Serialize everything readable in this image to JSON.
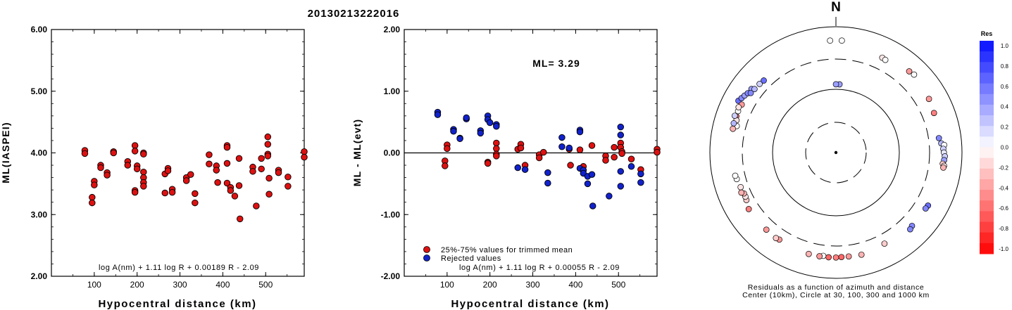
{
  "title": "20130213222016",
  "chart_data": [
    {
      "type": "scatter",
      "panel": "ML vs distance",
      "xlabel": "Hypocentral distance (km)",
      "ylabel": "ML(IASPEI)",
      "xlim": [
        0,
        590
      ],
      "ylim": [
        2.0,
        6.0
      ],
      "xticks": [
        "100",
        "200",
        "300",
        "400",
        "500"
      ],
      "yticks": [
        "2.00",
        "3.00",
        "4.00",
        "5.00",
        "6.00"
      ],
      "formula": "log A(nm) + 1.11 log R + 0.00189 R - 2.09",
      "marker_color": "#dd1111",
      "points": [
        [
          78,
          4.04
        ],
        [
          78,
          3.99
        ],
        [
          95,
          3.28
        ],
        [
          95,
          3.19
        ],
        [
          100,
          3.54
        ],
        [
          100,
          3.48
        ],
        [
          115,
          3.8
        ],
        [
          115,
          3.76
        ],
        [
          130,
          3.68
        ],
        [
          130,
          3.64
        ],
        [
          145,
          4.02
        ],
        [
          145,
          4.0
        ],
        [
          178,
          3.86
        ],
        [
          178,
          3.8
        ],
        [
          195,
          4.12
        ],
        [
          195,
          4.03
        ],
        [
          195,
          3.39
        ],
        [
          195,
          3.36
        ],
        [
          200,
          3.79
        ],
        [
          200,
          3.74
        ],
        [
          215,
          4.0
        ],
        [
          215,
          3.98
        ],
        [
          215,
          3.69
        ],
        [
          215,
          3.6
        ],
        [
          215,
          3.52
        ],
        [
          215,
          3.46
        ],
        [
          265,
          3.66
        ],
        [
          265,
          3.35
        ],
        [
          272,
          3.75
        ],
        [
          272,
          3.71
        ],
        [
          282,
          3.41
        ],
        [
          282,
          3.36
        ],
        [
          315,
          3.6
        ],
        [
          315,
          3.55
        ],
        [
          325,
          3.65
        ],
        [
          335,
          3.34
        ],
        [
          335,
          3.19
        ],
        [
          368,
          3.97
        ],
        [
          368,
          3.82
        ],
        [
          385,
          3.79
        ],
        [
          385,
          3.72
        ],
        [
          388,
          3.52
        ],
        [
          410,
          4.12
        ],
        [
          410,
          4.09
        ],
        [
          410,
          3.83
        ],
        [
          410,
          3.51
        ],
        [
          418,
          3.44
        ],
        [
          418,
          3.39
        ],
        [
          428,
          3.3
        ],
        [
          438,
          3.91
        ],
        [
          438,
          3.47
        ],
        [
          440,
          2.93
        ],
        [
          470,
          3.77
        ],
        [
          470,
          3.7
        ],
        [
          478,
          3.14
        ],
        [
          490,
          3.91
        ],
        [
          490,
          3.74
        ],
        [
          505,
          4.26
        ],
        [
          505,
          4.14
        ],
        [
          505,
          3.98
        ],
        [
          505,
          3.95
        ],
        [
          508,
          3.59
        ],
        [
          508,
          3.33
        ],
        [
          530,
          3.72
        ],
        [
          530,
          3.68
        ],
        [
          552,
          3.61
        ],
        [
          552,
          3.46
        ],
        [
          590,
          4.02
        ],
        [
          590,
          3.93
        ]
      ]
    },
    {
      "type": "scatter",
      "panel": "Residuals vs distance",
      "xlabel": "Hypocentral distance (km)",
      "ylabel": "ML - ML(evt)",
      "xlim": [
        0,
        590
      ],
      "ylim": [
        -2.0,
        2.0
      ],
      "xticks": [
        "100",
        "200",
        "300",
        "400",
        "500"
      ],
      "yticks": [
        "-2.00",
        "-1.00",
        "0.00",
        "1.00",
        "2.00"
      ],
      "annotation": "ML= 3.29",
      "formula": "log A(nm) + 1.11 log R + 0.00055 R - 2.09",
      "legend": [
        {
          "label": "25%-75% values for trimmed mean",
          "color": "#dd1111"
        },
        {
          "label": "Rejected values",
          "color": "#1122cc"
        }
      ],
      "series": [
        {
          "name": "25%-75% values for trimmed mean",
          "color": "#dd1111",
          "points": [
            [
              95,
              -0.13
            ],
            [
              95,
              -0.21
            ],
            [
              100,
              0.13
            ],
            [
              100,
              0.07
            ],
            [
              195,
              -0.15
            ],
            [
              195,
              -0.17
            ],
            [
              215,
              0.16
            ],
            [
              215,
              0.07
            ],
            [
              215,
              -0.02
            ],
            [
              215,
              -0.05
            ],
            [
              265,
              0.06
            ],
            [
              272,
              0.14
            ],
            [
              272,
              0.08
            ],
            [
              282,
              -0.2
            ],
            [
              315,
              -0.03
            ],
            [
              315,
              -0.08
            ],
            [
              325,
              0.01
            ],
            [
              385,
              0.06
            ],
            [
              388,
              -0.2
            ],
            [
              410,
              0.05
            ],
            [
              418,
              -0.22
            ],
            [
              438,
              0.12
            ],
            [
              470,
              -0.05
            ],
            [
              470,
              -0.12
            ],
            [
              490,
              0.09
            ],
            [
              490,
              -0.07
            ],
            [
              505,
              0.16
            ],
            [
              505,
              0.09
            ],
            [
              508,
              0.02
            ],
            [
              508,
              -0.01
            ],
            [
              530,
              -0.1
            ],
            [
              552,
              -0.27
            ],
            [
              590,
              0.06
            ],
            [
              590,
              0.01
            ]
          ]
        },
        {
          "name": "Rejected values",
          "color": "#1122cc",
          "points": [
            [
              78,
              0.66
            ],
            [
              78,
              0.62
            ],
            [
              115,
              0.38
            ],
            [
              115,
              0.35
            ],
            [
              130,
              0.24
            ],
            [
              130,
              0.23
            ],
            [
              145,
              0.55
            ],
            [
              145,
              0.57
            ],
            [
              178,
              0.36
            ],
            [
              178,
              0.32
            ],
            [
              195,
              0.6
            ],
            [
              195,
              0.54
            ],
            [
              200,
              0.49
            ],
            [
              215,
              0.46
            ],
            [
              215,
              0.43
            ],
            [
              265,
              -0.24
            ],
            [
              282,
              -0.27
            ],
            [
              335,
              -0.32
            ],
            [
              335,
              -0.49
            ],
            [
              368,
              0.25
            ],
            [
              368,
              0.1
            ],
            [
              385,
              0.08
            ],
            [
              410,
              0.37
            ],
            [
              410,
              0.34
            ],
            [
              410,
              -0.25
            ],
            [
              418,
              -0.28
            ],
            [
              418,
              -0.33
            ],
            [
              428,
              -0.38
            ],
            [
              428,
              -0.5
            ],
            [
              438,
              -0.35
            ],
            [
              440,
              -0.86
            ],
            [
              478,
              -0.7
            ],
            [
              505,
              0.42
            ],
            [
              505,
              0.29
            ],
            [
              505,
              -0.3
            ],
            [
              505,
              -0.54
            ],
            [
              530,
              -0.22
            ],
            [
              552,
              -0.34
            ],
            [
              552,
              -0.48
            ]
          ]
        }
      ]
    },
    {
      "type": "scatter",
      "panel": "Azimuthal residual plot",
      "north_label": "N",
      "caption": [
        "Residuals as a function of azimuth and distance",
        "Center (10km), Circle at 30, 100, 300 and 1000 km"
      ],
      "colorbar": {
        "title": "Res",
        "ticks": [
          "1.0",
          "0.8",
          "0.6",
          "0.4",
          "0.2",
          "0.0",
          "-0.2",
          "-0.4",
          "-0.6",
          "-0.8",
          "-1.0"
        ]
      },
      "stations": [
        [
          -3,
          600,
          0.0
        ],
        [
          3,
          600,
          0.0
        ],
        [
          -62,
          560,
          0.6
        ],
        [
          -60,
          530,
          0.5
        ],
        [
          -58,
          505,
          0.4
        ],
        [
          -56,
          480,
          0.5
        ],
        [
          -53,
          470,
          0.4
        ],
        [
          -55,
          440,
          0.5
        ],
        [
          -52,
          430,
          0.3
        ],
        [
          -48,
          420,
          0.2
        ],
        [
          -45,
          410,
          0.6
        ],
        [
          -63,
          470,
          -0.4
        ],
        [
          -67,
          480,
          0.0
        ],
        [
          -65,
          500,
          -0.1
        ],
        [
          -70,
          475,
          -0.6
        ],
        [
          -72,
          450,
          -0.1
        ],
        [
          -75,
          420,
          0.0
        ],
        [
          -74,
          480,
          0.3
        ],
        [
          -70,
          505,
          0.2
        ],
        [
          -77,
          470,
          -0.3
        ],
        [
          3,
          120,
          0.4
        ],
        [
          0,
          120,
          0.4
        ],
        [
          26,
          470,
          -0.1
        ],
        [
          28,
          460,
          0.0
        ],
        [
          42,
          540,
          -0.4
        ],
        [
          45,
          560,
          0.0
        ],
        [
          60,
          500,
          -0.4
        ],
        [
          68,
          470,
          -0.5
        ],
        [
          82,
          440,
          0.5
        ],
        [
          85,
          470,
          0.3
        ],
        [
          86,
          520,
          0.0
        ],
        [
          88,
          500,
          0.2
        ],
        [
          90,
          510,
          0.1
        ],
        [
          92,
          530,
          0.2
        ],
        [
          94,
          520,
          0.4
        ],
        [
          96,
          500,
          -0.2
        ],
        [
          97,
          530,
          -0.1
        ],
        [
          98,
          520,
          -0.3
        ],
        [
          120,
          480,
          0.6
        ],
        [
          122,
          470,
          0.5
        ],
        [
          134,
          470,
          0.5
        ],
        [
          136,
          490,
          0.5
        ],
        [
          152,
          430,
          -0.2
        ],
        [
          166,
          465,
          -0.3
        ],
        [
          173,
          455,
          -0.4
        ],
        [
          177,
          455,
          -0.6
        ],
        [
          180,
          460,
          -0.5
        ],
        [
          184,
          460,
          -0.6
        ],
        [
          187,
          445,
          0.0
        ],
        [
          189,
          460,
          -0.4
        ],
        [
          195,
          460,
          -0.3
        ],
        [
          213,
          440,
          -0.4
        ],
        [
          215,
          450,
          -0.2
        ],
        [
          222,
          440,
          -0.4
        ],
        [
          237,
          440,
          -0.5
        ],
        [
          242,
          400,
          -0.2
        ],
        [
          244,
          390,
          -0.1
        ],
        [
          246,
          390,
          -0.3
        ],
        [
          250,
          400,
          -0.1
        ],
        [
          247,
          420,
          -0.3
        ],
        [
          255,
          420,
          0.0
        ],
        [
          257,
          430,
          0.0
        ]
      ]
    }
  ]
}
